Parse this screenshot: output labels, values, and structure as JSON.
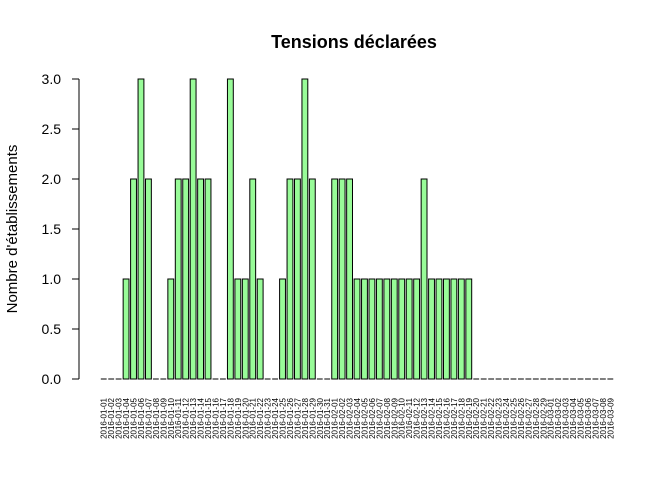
{
  "chart_data": {
    "type": "bar",
    "title": "Tensions déclarées",
    "xlabel": "",
    "ylabel": "Nombre d'établissements",
    "ylim": [
      0,
      3
    ],
    "yticks": [
      "0.0",
      "0.5",
      "1.0",
      "1.5",
      "2.0",
      "2.5",
      "3.0"
    ],
    "bar_color": "#98fb98",
    "bar_border": "#000000",
    "categories": [
      "2016-01-01",
      "2016-01-02",
      "2016-01-03",
      "2016-01-04",
      "2016-01-05",
      "2016-01-06",
      "2016-01-07",
      "2016-01-08",
      "2016-01-09",
      "2016-01-10",
      "2016-01-11",
      "2016-01-12",
      "2016-01-13",
      "2016-01-14",
      "2016-01-15",
      "2016-01-16",
      "2016-01-17",
      "2016-01-18",
      "2016-01-19",
      "2016-01-20",
      "2016-01-21",
      "2016-01-22",
      "2016-01-23",
      "2016-01-24",
      "2016-01-25",
      "2016-01-26",
      "2016-01-27",
      "2016-01-28",
      "2016-01-29",
      "2016-01-30",
      "2016-01-31",
      "2016-02-01",
      "2016-02-02",
      "2016-02-03",
      "2016-02-04",
      "2016-02-05",
      "2016-02-06",
      "2016-02-07",
      "2016-02-08",
      "2016-02-09",
      "2016-02-10",
      "2016-02-11",
      "2016-02-12",
      "2016-02-13",
      "2016-02-14",
      "2016-02-15",
      "2016-02-16",
      "2016-02-17",
      "2016-02-18",
      "2016-02-19",
      "2016-02-20",
      "2016-02-21",
      "2016-02-22",
      "2016-02-23",
      "2016-02-24",
      "2016-02-25",
      "2016-02-26",
      "2016-02-27",
      "2016-02-28",
      "2016-02-29",
      "2016-03-01",
      "2016-03-02",
      "2016-03-03",
      "2016-03-04",
      "2016-03-05",
      "2016-03-06",
      "2016-03-07",
      "2016-03-08",
      "2016-03-09"
    ],
    "values": [
      0,
      0,
      0,
      1,
      2,
      3,
      2,
      0,
      0,
      1,
      2,
      2,
      3,
      2,
      2,
      0,
      0,
      3,
      1,
      1,
      2,
      1,
      0,
      0,
      1,
      2,
      2,
      3,
      2,
      0,
      0,
      2,
      2,
      2,
      1,
      1,
      1,
      1,
      1,
      1,
      1,
      1,
      1,
      2,
      1,
      1,
      1,
      1,
      1,
      1,
      0,
      0,
      0,
      0,
      0,
      0,
      0,
      0,
      0,
      0,
      0,
      0,
      0,
      0,
      0,
      0,
      0,
      0,
      0
    ]
  }
}
